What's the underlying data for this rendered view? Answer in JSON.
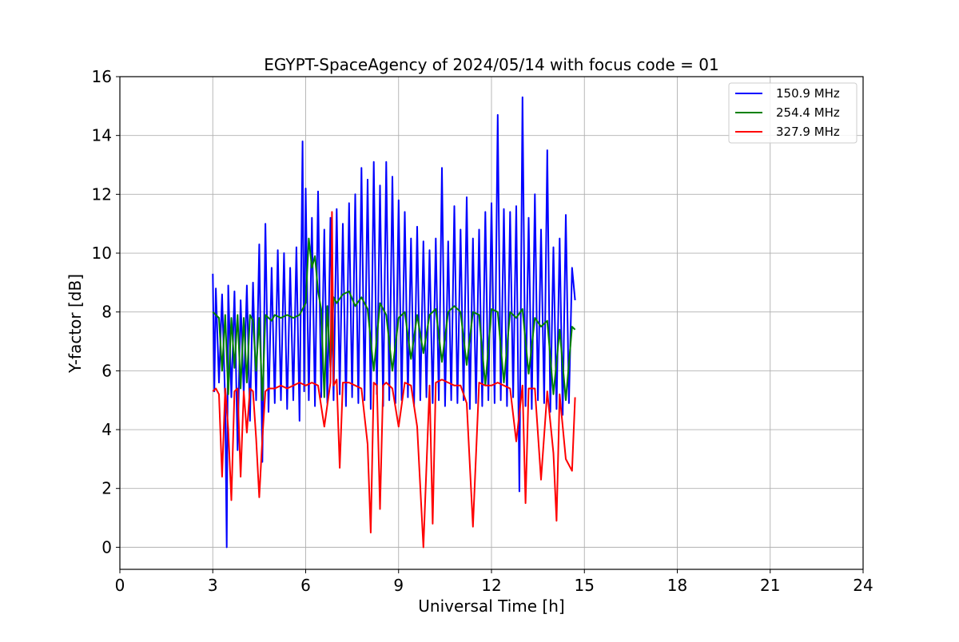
{
  "chart_data": {
    "type": "line",
    "title": "EGYPT-SpaceAgency of 2024/05/14 with focus code = 01",
    "xlabel": "Universal Time [h]",
    "ylabel": "Y-factor [dB]",
    "xlim": [
      0,
      24
    ],
    "ylim": [
      -0.75,
      16
    ],
    "xticks": [
      0,
      3,
      6,
      9,
      12,
      15,
      18,
      21,
      24
    ],
    "yticks": [
      0,
      2,
      4,
      6,
      8,
      10,
      12,
      14,
      16
    ],
    "grid": true,
    "legend_position": "top-right",
    "series": [
      {
        "name": "150.9 MHz",
        "color": "#0000ff",
        "x": [
          3.0,
          3.05,
          3.1,
          3.2,
          3.3,
          3.4,
          3.45,
          3.5,
          3.6,
          3.7,
          3.8,
          3.9,
          4.0,
          4.1,
          4.2,
          4.3,
          4.4,
          4.5,
          4.6,
          4.7,
          4.8,
          4.9,
          5.0,
          5.1,
          5.2,
          5.3,
          5.4,
          5.5,
          5.6,
          5.7,
          5.8,
          5.9,
          5.95,
          6.0,
          6.1,
          6.2,
          6.3,
          6.4,
          6.5,
          6.6,
          6.7,
          6.8,
          6.9,
          7.0,
          7.1,
          7.2,
          7.3,
          7.4,
          7.5,
          7.6,
          7.7,
          7.8,
          7.9,
          8.0,
          8.1,
          8.2,
          8.3,
          8.4,
          8.5,
          8.6,
          8.7,
          8.8,
          8.9,
          9.0,
          9.1,
          9.2,
          9.3,
          9.4,
          9.5,
          9.6,
          9.7,
          9.8,
          9.9,
          10.0,
          10.1,
          10.2,
          10.3,
          10.4,
          10.5,
          10.6,
          10.7,
          10.8,
          10.9,
          11.0,
          11.1,
          11.2,
          11.3,
          11.4,
          11.5,
          11.6,
          11.7,
          11.8,
          11.9,
          12.0,
          12.1,
          12.2,
          12.3,
          12.4,
          12.5,
          12.6,
          12.7,
          12.8,
          12.9,
          13.0,
          13.1,
          13.2,
          13.3,
          13.4,
          13.5,
          13.6,
          13.7,
          13.8,
          13.9,
          14.0,
          14.1,
          14.2,
          14.3,
          14.4,
          14.5,
          14.6,
          14.7
        ],
        "values": [
          9.3,
          5.3,
          8.8,
          5.6,
          8.6,
          4.9,
          0.0,
          8.9,
          5.1,
          8.7,
          3.3,
          8.4,
          5.2,
          8.9,
          4.3,
          9.0,
          5.0,
          10.3,
          2.9,
          11.0,
          4.6,
          9.5,
          4.9,
          10.1,
          5.0,
          10.0,
          4.7,
          9.5,
          5.0,
          10.2,
          4.3,
          13.8,
          5.3,
          12.2,
          5.0,
          11.2,
          4.8,
          12.1,
          5.1,
          10.8,
          4.9,
          11.2,
          5.0,
          11.5,
          5.2,
          11.0,
          4.8,
          11.7,
          5.1,
          12.0,
          4.9,
          12.9,
          5.0,
          12.5,
          4.7,
          13.1,
          5.2,
          12.3,
          4.8,
          13.1,
          5.0,
          12.6,
          4.9,
          11.8,
          5.0,
          11.4,
          5.1,
          10.5,
          4.8,
          10.9,
          5.0,
          10.4,
          5.1,
          10.1,
          4.9,
          10.5,
          5.0,
          12.9,
          4.8,
          10.4,
          5.0,
          11.6,
          4.9,
          10.8,
          5.0,
          11.9,
          4.7,
          10.5,
          4.9,
          10.8,
          4.8,
          11.4,
          5.0,
          11.7,
          4.9,
          14.7,
          5.0,
          11.5,
          4.8,
          11.4,
          5.1,
          11.6,
          1.9,
          15.3,
          4.8,
          11.2,
          4.7,
          12.0,
          5.0,
          10.8,
          4.9,
          13.5,
          4.6,
          10.2,
          4.7,
          10.5,
          4.5,
          11.3,
          4.9,
          9.5,
          8.4
        ]
      },
      {
        "name": "254.4 MHz",
        "color": "#008000",
        "x": [
          3.0,
          3.1,
          3.2,
          3.3,
          3.4,
          3.5,
          3.6,
          3.7,
          3.8,
          3.9,
          4.0,
          4.1,
          4.2,
          4.3,
          4.4,
          4.5,
          4.6,
          4.7,
          4.8,
          4.9,
          5.0,
          5.2,
          5.4,
          5.6,
          5.8,
          6.0,
          6.1,
          6.2,
          6.3,
          6.4,
          6.5,
          6.6,
          6.7,
          6.8,
          6.9,
          7.0,
          7.2,
          7.4,
          7.6,
          7.8,
          8.0,
          8.2,
          8.4,
          8.6,
          8.8,
          9.0,
          9.2,
          9.4,
          9.6,
          9.8,
          10.0,
          10.2,
          10.4,
          10.6,
          10.8,
          11.0,
          11.2,
          11.4,
          11.6,
          11.8,
          12.0,
          12.2,
          12.4,
          12.6,
          12.8,
          13.0,
          13.2,
          13.4,
          13.6,
          13.8,
          14.0,
          14.2,
          14.4,
          14.6,
          14.7
        ],
        "values": [
          8.0,
          7.9,
          7.8,
          6.0,
          7.9,
          5.2,
          7.8,
          6.1,
          7.9,
          5.4,
          7.8,
          5.6,
          7.9,
          7.7,
          6.0,
          7.8,
          5.0,
          7.9,
          7.8,
          7.7,
          7.9,
          7.8,
          7.9,
          7.8,
          7.9,
          8.3,
          10.5,
          9.5,
          9.9,
          8.7,
          8.1,
          5.1,
          8.2,
          6.1,
          8.5,
          8.3,
          8.6,
          8.7,
          8.2,
          8.5,
          8.1,
          6.0,
          8.3,
          7.9,
          6.0,
          7.8,
          8.0,
          6.4,
          7.9,
          6.6,
          7.9,
          8.1,
          6.3,
          8.0,
          8.2,
          8.0,
          6.2,
          8.0,
          7.9,
          5.5,
          8.1,
          8.0,
          5.6,
          8.0,
          7.8,
          8.1,
          5.9,
          7.8,
          7.5,
          7.7,
          5.2,
          7.4,
          5.0,
          7.5,
          7.4
        ]
      },
      {
        "name": "327.9 MHz",
        "color": "#ff0000",
        "x": [
          3.0,
          3.1,
          3.2,
          3.3,
          3.4,
          3.5,
          3.6,
          3.7,
          3.8,
          3.9,
          4.0,
          4.1,
          4.2,
          4.3,
          4.4,
          4.5,
          4.6,
          4.7,
          4.8,
          5.0,
          5.2,
          5.4,
          5.6,
          5.8,
          6.0,
          6.2,
          6.4,
          6.6,
          6.8,
          6.85,
          6.9,
          7.0,
          7.1,
          7.2,
          7.4,
          7.6,
          7.8,
          8.0,
          8.1,
          8.2,
          8.3,
          8.4,
          8.5,
          8.6,
          8.8,
          9.0,
          9.2,
          9.4,
          9.6,
          9.8,
          10.0,
          10.1,
          10.2,
          10.4,
          10.6,
          10.8,
          11.0,
          11.2,
          11.4,
          11.6,
          11.8,
          12.0,
          12.2,
          12.4,
          12.6,
          12.8,
          13.0,
          13.1,
          13.2,
          13.4,
          13.6,
          13.8,
          14.0,
          14.1,
          14.2,
          14.4,
          14.6,
          14.7
        ],
        "values": [
          5.3,
          5.4,
          5.2,
          2.4,
          5.4,
          4.0,
          1.6,
          5.3,
          5.4,
          2.4,
          5.3,
          3.9,
          5.4,
          5.3,
          3.7,
          1.7,
          3.7,
          5.3,
          5.4,
          5.4,
          5.5,
          5.4,
          5.5,
          5.6,
          5.5,
          5.6,
          5.5,
          4.1,
          5.6,
          11.4,
          5.5,
          5.7,
          2.7,
          5.6,
          5.6,
          5.5,
          5.4,
          3.5,
          0.5,
          5.6,
          5.5,
          1.3,
          5.5,
          5.6,
          5.4,
          4.1,
          5.6,
          5.5,
          4.1,
          0.0,
          5.5,
          0.8,
          5.6,
          5.7,
          5.6,
          5.5,
          5.5,
          4.9,
          0.7,
          5.6,
          5.5,
          5.5,
          5.6,
          5.5,
          5.4,
          3.6,
          5.5,
          1.5,
          5.4,
          5.4,
          2.3,
          5.3,
          3.2,
          0.9,
          5.2,
          3.0,
          2.6,
          5.1
        ]
      }
    ]
  }
}
